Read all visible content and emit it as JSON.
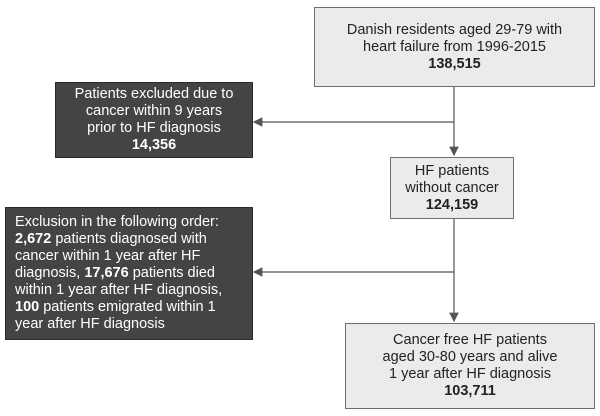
{
  "boxes": {
    "start": {
      "line1": "Danish residents aged 29-79 with",
      "line2": "heart failure from 1996-2015",
      "count": "138,515"
    },
    "excluded_cancer": {
      "line1": "Patients excluded due to",
      "line2": "cancer within 9 years",
      "line3": "prior to HF diagnosis",
      "count": "14,356"
    },
    "no_cancer": {
      "line1": "HF patients",
      "line2": "without cancer",
      "count": "124,159"
    },
    "exclusion_order": {
      "intro": "Exclusion in the following order:",
      "n1": "2,672",
      "t1": " patients diagnosed with cancer within 1 year after HF diagnosis, ",
      "n2": "17,676",
      "t2": " patients died within 1 year after HF diagnosis, ",
      "n3": "100",
      "t3": " patients emigrated within 1 year after HF diagnosis"
    },
    "final": {
      "line1": "Cancer free HF patients",
      "line2": "aged 30-80 years and alive",
      "line3": "1 year after HF diagnosis",
      "count": "103,711"
    }
  },
  "colors": {
    "light_fill": "#ebebeb",
    "dark_fill": "#444444",
    "line": "#555555"
  }
}
